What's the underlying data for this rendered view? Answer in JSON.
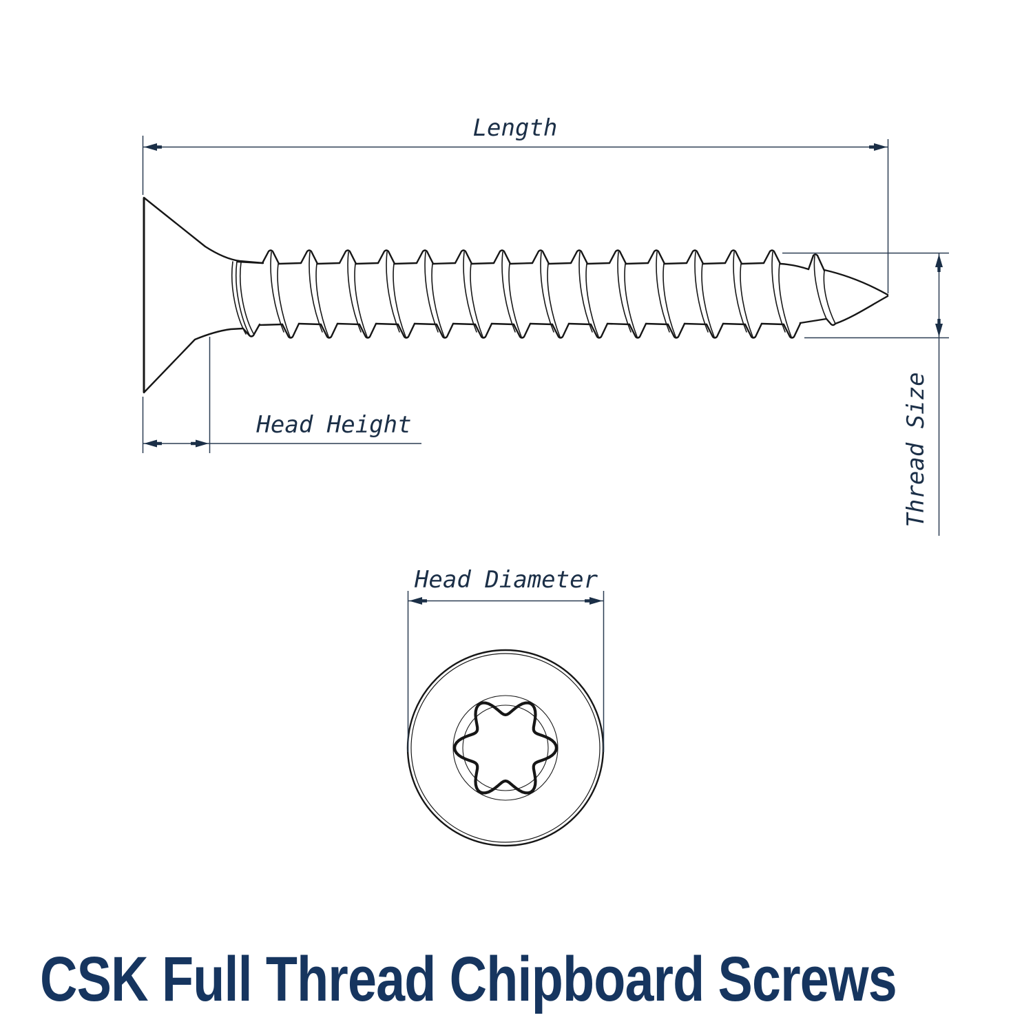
{
  "title": "CSK Full Thread Chipboard Screws",
  "labels": {
    "length": "Length",
    "head_height": "Head Height",
    "thread_size": "Thread Size",
    "head_diameter": "Head Diameter"
  },
  "colors": {
    "dimension_ink": "#1b2f47",
    "dimension_line": "#2b3d52",
    "drawing_ink": "#161616",
    "title_ink": "#16355f",
    "background": "#ffffff"
  }
}
